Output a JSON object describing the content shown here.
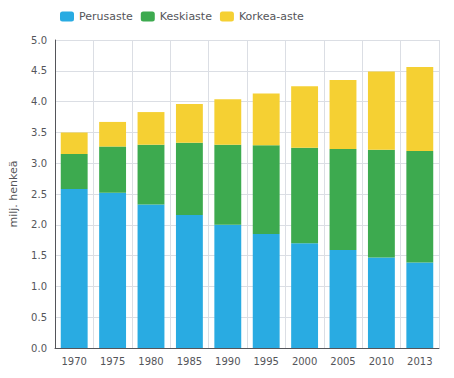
{
  "chart_data": {
    "type": "bar",
    "stacked": true,
    "categories": [
      "1970",
      "1975",
      "1980",
      "1985",
      "1990",
      "1995",
      "2000",
      "2005",
      "2010",
      "2013"
    ],
    "series": [
      {
        "name": "Perusaste",
        "color": "#29ABE2",
        "values": [
          2.58,
          2.52,
          2.33,
          2.16,
          2.0,
          1.85,
          1.7,
          1.59,
          1.47,
          1.39
        ]
      },
      {
        "name": "Keskiaste",
        "color": "#3DAA4F",
        "values": [
          0.57,
          0.75,
          0.97,
          1.17,
          1.3,
          1.44,
          1.55,
          1.64,
          1.75,
          1.81
        ]
      },
      {
        "name": "Korkea-aste",
        "color": "#F5D033",
        "values": [
          0.35,
          0.4,
          0.53,
          0.63,
          0.74,
          0.84,
          1.0,
          1.12,
          1.27,
          1.36
        ]
      }
    ],
    "ylabel": "milj. henkeä",
    "ylim": [
      0.0,
      5.0
    ],
    "yticks": [
      {
        "value": 0,
        "label": "0.0"
      },
      0.5,
      {
        "value": 1,
        "label": "1.0"
      },
      1.5,
      {
        "value": 2,
        "label": "2.0"
      },
      2.5,
      {
        "value": 3,
        "label": "3.0"
      },
      3.5,
      {
        "value": 4,
        "label": "4.0"
      },
      4.5,
      {
        "value": 5,
        "label": "5.0"
      }
    ],
    "grid": true,
    "legend": "upper left"
  }
}
